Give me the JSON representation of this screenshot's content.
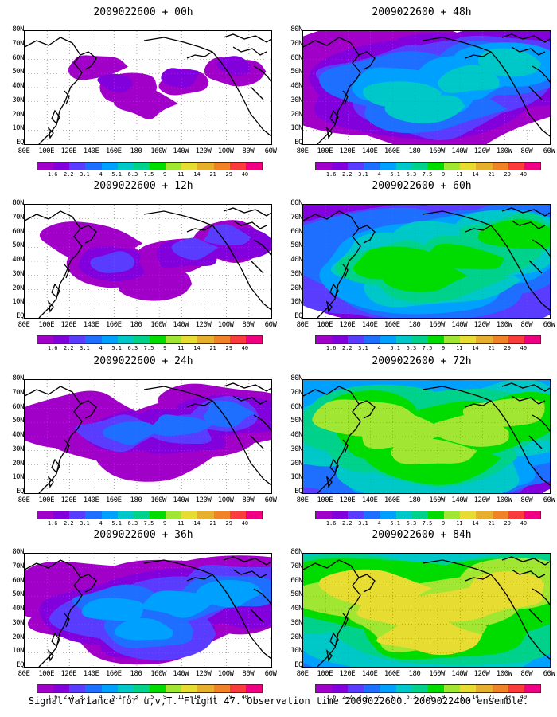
{
  "panels": [
    {
      "title": "2009022600 + 00h",
      "level": 0
    },
    {
      "title": "2009022600 + 12h",
      "level": 1
    },
    {
      "title": "2009022600 + 24h",
      "level": 2
    },
    {
      "title": "2009022600 + 36h",
      "level": 3
    },
    {
      "title": "2009022600 + 48h",
      "level": 4
    },
    {
      "title": "2009022600 + 60h",
      "level": 5
    },
    {
      "title": "2009022600 + 72h",
      "level": 6
    },
    {
      "title": "2009022600 + 84h",
      "level": 7
    }
  ],
  "lat_labels": [
    "80N",
    "70N",
    "60N",
    "50N",
    "40N",
    "30N",
    "20N",
    "10N",
    "EQ"
  ],
  "lon_labels": [
    "80E",
    "100E",
    "120E",
    "140E",
    "160E",
    "180",
    "160W",
    "140W",
    "120W",
    "100W",
    "80W",
    "60W"
  ],
  "colorbar": {
    "labels": [
      "1.6",
      "2.2",
      "3.1",
      "4",
      "5.1",
      "6.3",
      "7.5",
      "9",
      "11",
      "14",
      "21",
      "29",
      "40"
    ],
    "colors": [
      "#a000c8",
      "#8200dc",
      "#5a3cff",
      "#1e6eff",
      "#00a0ff",
      "#00c8c8",
      "#00d28c",
      "#00dc00",
      "#a0e632",
      "#e6dc32",
      "#e6af2d",
      "#f08228",
      "#fa3c3c",
      "#f00082"
    ]
  },
  "caption": "Signal Variance for u,v,T. Flight 47. Observation time 2009022600. 2009022400 ensemble."
}
